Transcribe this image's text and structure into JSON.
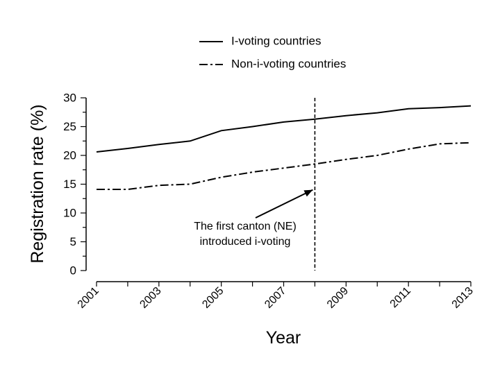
{
  "chart_data": {
    "type": "line",
    "xlabel": "Year",
    "ylabel": "Registration rate (%)",
    "xlim": [
      2001,
      2013
    ],
    "ylim": [
      0,
      30
    ],
    "x_ticks_labeled": [
      2001,
      2003,
      2005,
      2007,
      2009,
      2011,
      2013
    ],
    "x_ticks_all": [
      2001,
      2002,
      2003,
      2004,
      2005,
      2006,
      2007,
      2008,
      2009,
      2010,
      2011,
      2012,
      2013
    ],
    "y_ticks": [
      0,
      5,
      10,
      15,
      20,
      25,
      30
    ],
    "grid": false,
    "legend_position": "top",
    "x": [
      2001,
      2002,
      2003,
      2004,
      2005,
      2006,
      2007,
      2008,
      2009,
      2010,
      2011,
      2012,
      2013
    ],
    "series": [
      {
        "name": "I-voting countries",
        "style": "solid",
        "values": [
          20.6,
          21.2,
          21.9,
          22.5,
          24.3,
          25.0,
          25.8,
          26.3,
          26.9,
          27.4,
          28.1,
          28.3,
          28.6
        ]
      },
      {
        "name": "Non-i-voting countries",
        "style": "dashdot",
        "values": [
          14.1,
          14.1,
          14.8,
          15.0,
          16.2,
          17.1,
          17.8,
          18.5,
          19.3,
          20.0,
          21.1,
          22.0,
          22.2
        ]
      }
    ],
    "reference_line": {
      "x": 2008,
      "style": "dashed"
    },
    "annotation": {
      "lines": [
        "The first canton (NE)",
        "introduced i-voting"
      ],
      "arrow_to": {
        "x": 2008,
        "y": 14.5
      }
    }
  }
}
